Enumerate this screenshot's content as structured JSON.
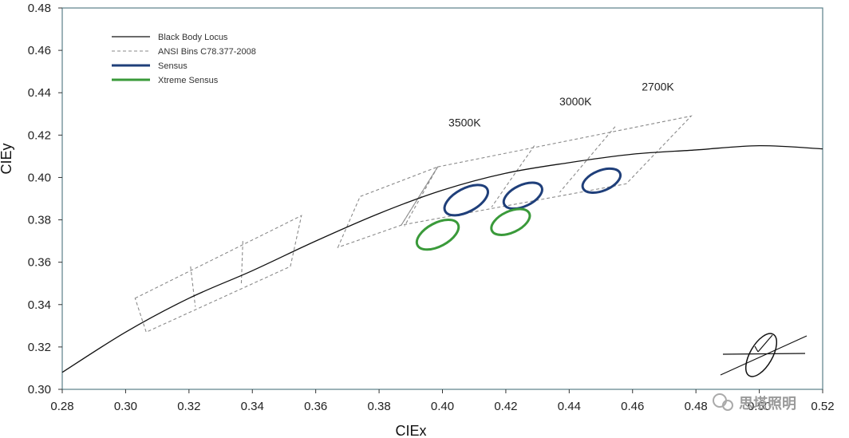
{
  "chart_data": {
    "type": "line",
    "xlabel": "CIEx",
    "ylabel": "CIEy",
    "xlim": [
      0.28,
      0.52
    ],
    "ylim": [
      0.3,
      0.48
    ],
    "x_ticks": [
      "0.28",
      "0.30",
      "0.32",
      "0.34",
      "0.36",
      "0.38",
      "0.40",
      "0.42",
      "0.44",
      "0.46",
      "0.48",
      "0.50",
      "0.52"
    ],
    "y_ticks": [
      "0.30",
      "0.32",
      "0.34",
      "0.36",
      "0.38",
      "0.40",
      "0.42",
      "0.44",
      "0.46",
      "0.48"
    ],
    "grid": false,
    "legend_position": "top-left",
    "legend": [
      {
        "label": "Black Body Locus",
        "style": "solid-thin",
        "color": "#111111"
      },
      {
        "label": "ANSI Bins C78.377-2008",
        "style": "dashed",
        "color": "#888888"
      },
      {
        "label": "Sensus",
        "style": "solid-thick",
        "color": "#1f3f7a"
      },
      {
        "label": "Xtreme Sensus",
        "style": "solid-thick",
        "color": "#3a9a3a"
      }
    ],
    "annotations": [
      {
        "text": "3500K",
        "x": 0.407,
        "y": 0.424
      },
      {
        "text": "3000K",
        "x": 0.442,
        "y": 0.434
      },
      {
        "text": "2700K",
        "x": 0.468,
        "y": 0.441
      }
    ],
    "black_body_locus": {
      "x": [
        0.28,
        0.3,
        0.32,
        0.34,
        0.36,
        0.38,
        0.4,
        0.42,
        0.44,
        0.46,
        0.48,
        0.5,
        0.52
      ],
      "y": [
        0.308,
        0.327,
        0.343,
        0.356,
        0.37,
        0.383,
        0.394,
        0.402,
        0.407,
        0.411,
        0.413,
        0.415,
        0.4135
      ]
    },
    "ansi_bins": [
      {
        "name": "bin-left",
        "points": [
          [
            0.303,
            0.343
          ],
          [
            0.3555,
            0.382
          ],
          [
            0.352,
            0.358
          ],
          [
            0.3065,
            0.327
          ]
        ]
      },
      {
        "name": "bin-mid",
        "points": [
          [
            0.367,
            0.367
          ],
          [
            0.374,
            0.391
          ],
          [
            0.3985,
            0.405
          ],
          [
            0.387,
            0.3775
          ]
        ]
      },
      {
        "name": "bin-right",
        "points": [
          [
            0.3985,
            0.405
          ],
          [
            0.4785,
            0.429
          ],
          [
            0.458,
            0.397
          ],
          [
            0.387,
            0.3775
          ]
        ]
      }
    ],
    "ansi_dividers": [
      {
        "points": [
          [
            0.3205,
            0.358
          ],
          [
            0.322,
            0.339
          ]
        ]
      },
      {
        "points": [
          [
            0.337,
            0.37
          ],
          [
            0.3365,
            0.349
          ]
        ]
      },
      {
        "points": [
          [
            0.3985,
            0.405
          ],
          [
            0.388,
            0.377
          ]
        ]
      },
      {
        "points": [
          [
            0.429,
            0.415
          ],
          [
            0.4155,
            0.386
          ]
        ]
      },
      {
        "points": [
          [
            0.4545,
            0.424
          ],
          [
            0.437,
            0.393
          ]
        ]
      }
    ],
    "series": [
      {
        "name": "Sensus",
        "color": "#1f3f7a",
        "ellipses": [
          {
            "cx": 0.4075,
            "cy": 0.3893,
            "rx": 0.0075,
            "ry": 0.0055,
            "rotate": -28
          },
          {
            "cx": 0.4254,
            "cy": 0.3914,
            "rx": 0.0065,
            "ry": 0.005,
            "rotate": -25
          },
          {
            "cx": 0.4502,
            "cy": 0.3985,
            "rx": 0.0063,
            "ry": 0.0048,
            "rotate": -22
          }
        ]
      },
      {
        "name": "Xtreme Sensus",
        "color": "#3a9a3a",
        "ellipses": [
          {
            "cx": 0.3985,
            "cy": 0.373,
            "rx": 0.0072,
            "ry": 0.0055,
            "rotate": -28
          },
          {
            "cx": 0.4215,
            "cy": 0.379,
            "rx": 0.0065,
            "ry": 0.005,
            "rotate": -25
          }
        ]
      }
    ]
  },
  "watermark": {
    "text": "思塔照明"
  },
  "colors": {
    "plot_border": "#5a7f88",
    "axis_text": "#222222"
  }
}
